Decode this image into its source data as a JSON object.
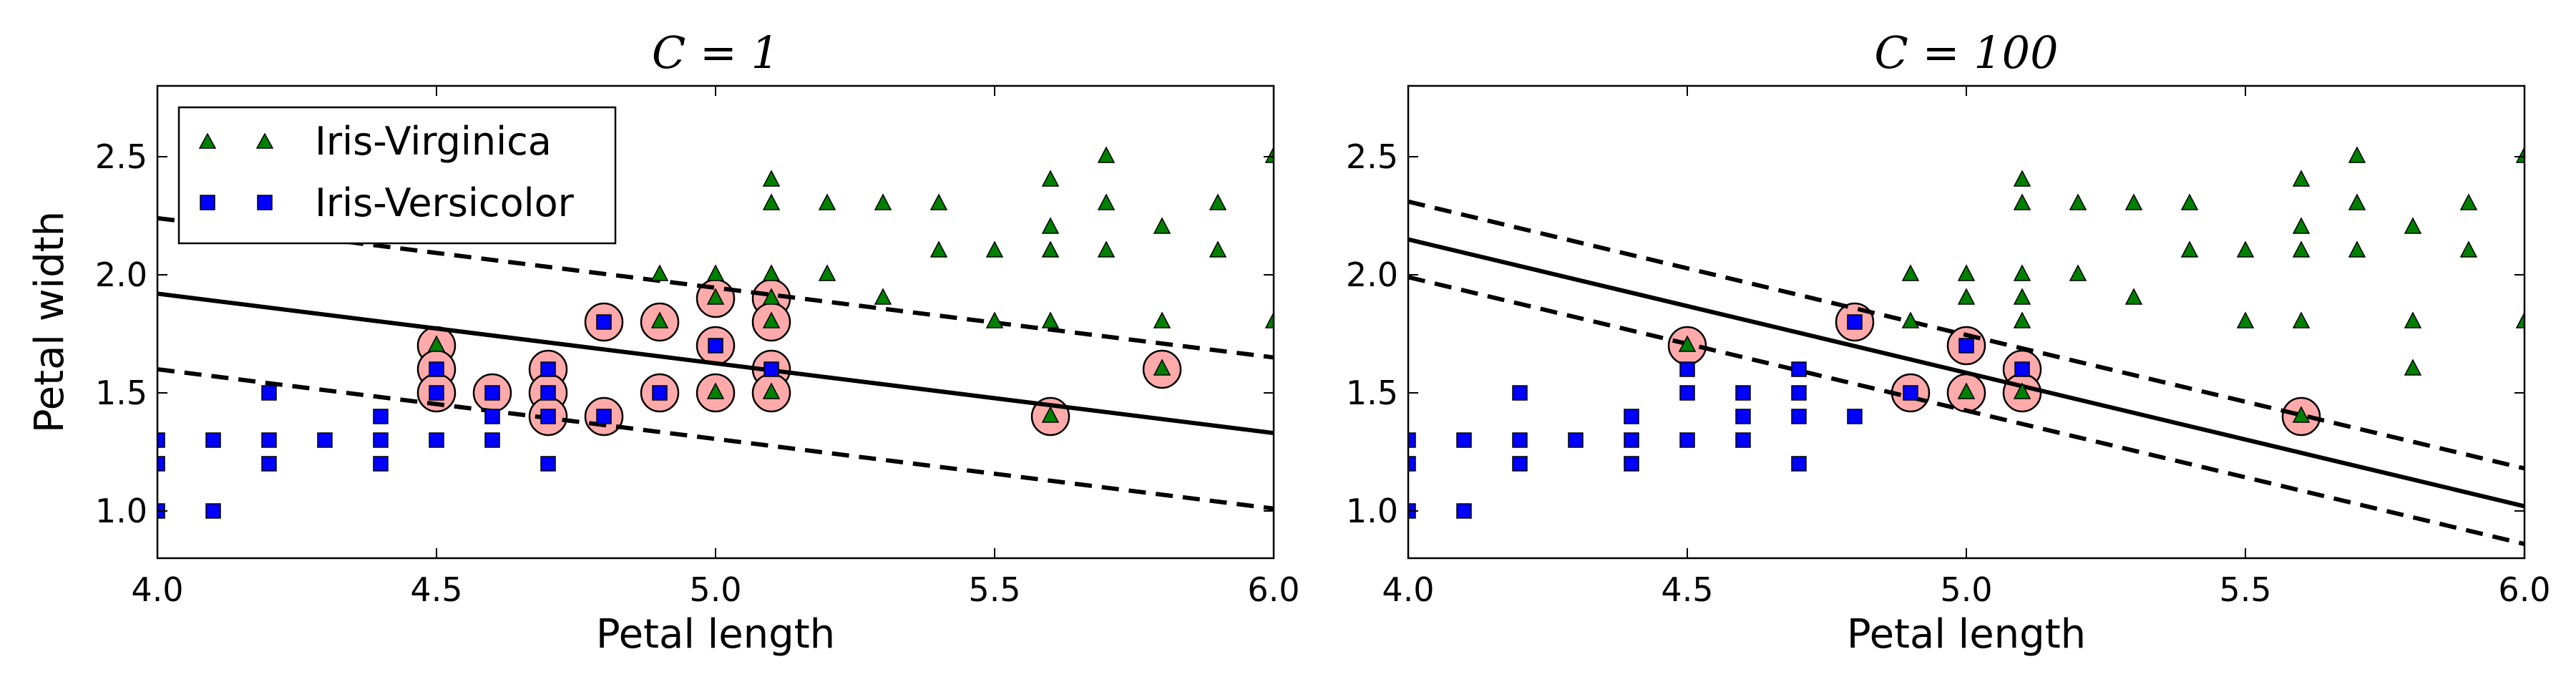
{
  "chart_data": [
    {
      "type": "scatter",
      "title": "C = 1",
      "xlabel": "Petal length",
      "ylabel": "Petal width",
      "xlim": [
        4.0,
        6.0
      ],
      "ylim": [
        0.8,
        2.8
      ],
      "xticks": [
        "4.0",
        "4.5",
        "5.0",
        "5.5",
        "6.0"
      ],
      "yticks": [
        "1.0",
        "1.5",
        "2.0",
        "2.5"
      ],
      "xtick_values": [
        4.0,
        4.5,
        5.0,
        5.5,
        6.0
      ],
      "ytick_values": [
        1.0,
        1.5,
        2.0,
        2.5
      ],
      "grid": false,
      "legend": {
        "position": "top-left",
        "entries": [
          {
            "label": "Iris-Virginica",
            "marker": "triangle",
            "color": "#008000"
          },
          {
            "label": "Iris-Versicolor",
            "marker": "square",
            "color": "#0000ff"
          }
        ]
      },
      "lines": [
        {
          "style": "solid",
          "points": [
            [
              4.0,
              1.92
            ],
            [
              6.0,
              1.33
            ]
          ]
        },
        {
          "style": "dashed",
          "points": [
            [
              4.0,
              2.24
            ],
            [
              6.0,
              1.65
            ]
          ]
        },
        {
          "style": "dashed",
          "points": [
            [
              4.0,
              1.6
            ],
            [
              6.0,
              1.01
            ]
          ]
        }
      ],
      "virginica": [
        [
          4.5,
          1.7
        ],
        [
          4.9,
          1.8
        ],
        [
          4.9,
          2.0
        ],
        [
          5.0,
          1.9
        ],
        [
          5.0,
          2.0
        ],
        [
          5.0,
          1.5
        ],
        [
          5.1,
          2.4
        ],
        [
          5.1,
          2.3
        ],
        [
          5.1,
          2.0
        ],
        [
          5.1,
          1.9
        ],
        [
          5.1,
          1.8
        ],
        [
          5.1,
          1.5
        ],
        [
          5.2,
          2.0
        ],
        [
          5.2,
          2.3
        ],
        [
          5.3,
          2.3
        ],
        [
          5.3,
          1.9
        ],
        [
          5.4,
          2.3
        ],
        [
          5.4,
          2.1
        ],
        [
          5.5,
          2.1
        ],
        [
          5.5,
          1.8
        ],
        [
          5.6,
          2.4
        ],
        [
          5.6,
          2.2
        ],
        [
          5.6,
          2.1
        ],
        [
          5.6,
          1.8
        ],
        [
          5.6,
          1.4
        ],
        [
          5.7,
          2.5
        ],
        [
          5.7,
          2.3
        ],
        [
          5.7,
          2.1
        ],
        [
          5.8,
          2.2
        ],
        [
          5.8,
          1.8
        ],
        [
          5.8,
          1.6
        ],
        [
          5.9,
          2.3
        ],
        [
          5.9,
          2.1
        ],
        [
          6.0,
          2.5
        ],
        [
          6.0,
          1.8
        ]
      ],
      "versicolor": [
        [
          4.0,
          1.0
        ],
        [
          4.0,
          1.2
        ],
        [
          4.0,
          1.3
        ],
        [
          4.1,
          1.0
        ],
        [
          4.1,
          1.3
        ],
        [
          4.2,
          1.2
        ],
        [
          4.2,
          1.3
        ],
        [
          4.2,
          1.5
        ],
        [
          4.3,
          1.3
        ],
        [
          4.4,
          1.2
        ],
        [
          4.4,
          1.3
        ],
        [
          4.4,
          1.4
        ],
        [
          4.5,
          1.3
        ],
        [
          4.5,
          1.5
        ],
        [
          4.5,
          1.6
        ],
        [
          4.6,
          1.3
        ],
        [
          4.6,
          1.4
        ],
        [
          4.6,
          1.5
        ],
        [
          4.7,
          1.2
        ],
        [
          4.7,
          1.4
        ],
        [
          4.7,
          1.5
        ],
        [
          4.7,
          1.6
        ],
        [
          4.8,
          1.4
        ],
        [
          4.8,
          1.8
        ],
        [
          4.9,
          1.5
        ],
        [
          5.0,
          1.7
        ],
        [
          5.1,
          1.6
        ]
      ],
      "support_vectors": [
        [
          4.5,
          1.7
        ],
        [
          4.5,
          1.6
        ],
        [
          4.5,
          1.5
        ],
        [
          4.6,
          1.5
        ],
        [
          4.7,
          1.6
        ],
        [
          4.7,
          1.5
        ],
        [
          4.7,
          1.4
        ],
        [
          4.8,
          1.8
        ],
        [
          4.8,
          1.4
        ],
        [
          4.9,
          1.8
        ],
        [
          4.9,
          1.5
        ],
        [
          5.0,
          1.9
        ],
        [
          5.0,
          1.7
        ],
        [
          5.0,
          1.5
        ],
        [
          5.1,
          1.9
        ],
        [
          5.1,
          1.8
        ],
        [
          5.1,
          1.6
        ],
        [
          5.1,
          1.5
        ],
        [
          5.6,
          1.4
        ],
        [
          5.8,
          1.6
        ]
      ]
    },
    {
      "type": "scatter",
      "title": "C = 100",
      "xlabel": "Petal length",
      "ylabel": "",
      "xlim": [
        4.0,
        6.0
      ],
      "ylim": [
        0.8,
        2.8
      ],
      "xticks": [
        "4.0",
        "4.5",
        "5.0",
        "5.5",
        "6.0"
      ],
      "yticks": [
        "1.0",
        "1.5",
        "2.0",
        "2.5"
      ],
      "xtick_values": [
        4.0,
        4.5,
        5.0,
        5.5,
        6.0
      ],
      "ytick_values": [
        1.0,
        1.5,
        2.0,
        2.5
      ],
      "grid": false,
      "lines": [
        {
          "style": "solid",
          "points": [
            [
              4.0,
              2.15
            ],
            [
              6.0,
              1.02
            ]
          ]
        },
        {
          "style": "dashed",
          "points": [
            [
              4.0,
              2.31
            ],
            [
              6.0,
              1.18
            ]
          ]
        },
        {
          "style": "dashed",
          "points": [
            [
              4.0,
              1.99
            ],
            [
              6.0,
              0.86
            ]
          ]
        }
      ],
      "virginica": [
        [
          4.5,
          1.7
        ],
        [
          4.9,
          1.8
        ],
        [
          4.9,
          2.0
        ],
        [
          5.0,
          1.9
        ],
        [
          5.0,
          2.0
        ],
        [
          5.0,
          1.5
        ],
        [
          5.1,
          2.4
        ],
        [
          5.1,
          2.3
        ],
        [
          5.1,
          2.0
        ],
        [
          5.1,
          1.9
        ],
        [
          5.1,
          1.8
        ],
        [
          5.1,
          1.5
        ],
        [
          5.2,
          2.0
        ],
        [
          5.2,
          2.3
        ],
        [
          5.3,
          2.3
        ],
        [
          5.3,
          1.9
        ],
        [
          5.4,
          2.3
        ],
        [
          5.4,
          2.1
        ],
        [
          5.5,
          2.1
        ],
        [
          5.5,
          1.8
        ],
        [
          5.6,
          2.4
        ],
        [
          5.6,
          2.2
        ],
        [
          5.6,
          2.1
        ],
        [
          5.6,
          1.8
        ],
        [
          5.6,
          1.4
        ],
        [
          5.7,
          2.5
        ],
        [
          5.7,
          2.3
        ],
        [
          5.7,
          2.1
        ],
        [
          5.8,
          2.2
        ],
        [
          5.8,
          1.8
        ],
        [
          5.8,
          1.6
        ],
        [
          5.9,
          2.3
        ],
        [
          5.9,
          2.1
        ],
        [
          6.0,
          2.5
        ],
        [
          6.0,
          1.8
        ]
      ],
      "versicolor": [
        [
          4.0,
          1.0
        ],
        [
          4.0,
          1.2
        ],
        [
          4.0,
          1.3
        ],
        [
          4.1,
          1.0
        ],
        [
          4.1,
          1.3
        ],
        [
          4.2,
          1.2
        ],
        [
          4.2,
          1.3
        ],
        [
          4.2,
          1.5
        ],
        [
          4.3,
          1.3
        ],
        [
          4.4,
          1.2
        ],
        [
          4.4,
          1.3
        ],
        [
          4.4,
          1.4
        ],
        [
          4.5,
          1.3
        ],
        [
          4.5,
          1.5
        ],
        [
          4.5,
          1.6
        ],
        [
          4.6,
          1.3
        ],
        [
          4.6,
          1.4
        ],
        [
          4.6,
          1.5
        ],
        [
          4.7,
          1.2
        ],
        [
          4.7,
          1.4
        ],
        [
          4.7,
          1.5
        ],
        [
          4.7,
          1.6
        ],
        [
          4.8,
          1.4
        ],
        [
          4.8,
          1.8
        ],
        [
          4.9,
          1.5
        ],
        [
          5.0,
          1.7
        ],
        [
          5.1,
          1.6
        ]
      ],
      "support_vectors": [
        [
          4.5,
          1.7
        ],
        [
          4.8,
          1.8
        ],
        [
          4.9,
          1.5
        ],
        [
          5.0,
          1.7
        ],
        [
          5.0,
          1.5
        ],
        [
          5.1,
          1.6
        ],
        [
          5.1,
          1.5
        ],
        [
          5.6,
          1.4
        ]
      ]
    }
  ],
  "colors": {
    "virginica": "#008000",
    "versicolor": "#0000ff",
    "support_vector": "#ffaaaa",
    "line": "#000000"
  }
}
